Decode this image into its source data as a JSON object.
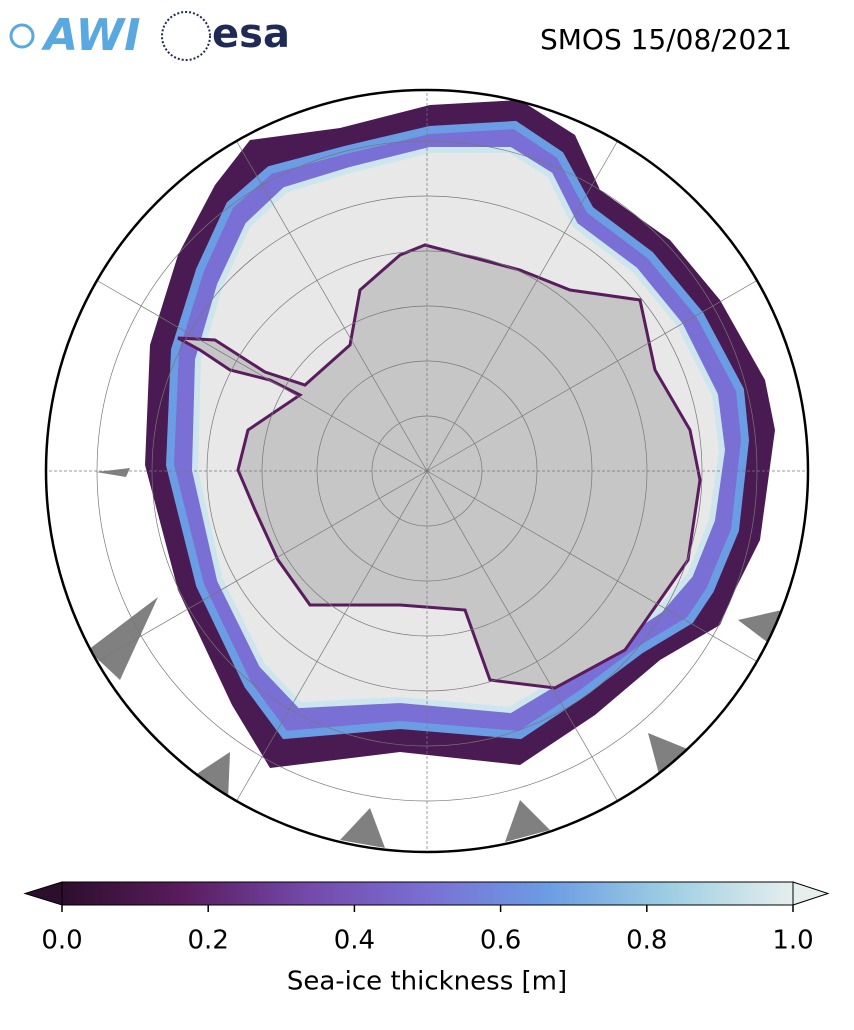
{
  "header": {
    "logos": [
      "AWI",
      "esa"
    ],
    "title": "SMOS 15/08/2021"
  },
  "colorbar": {
    "label": "Sea-ice thickness [m]",
    "lim": [
      0,
      1
    ],
    "ticks": [
      {
        "value": 0,
        "label": "0.0"
      },
      {
        "value": 0.2,
        "label": "0.2"
      },
      {
        "value": 0.4,
        "label": "0.4"
      },
      {
        "value": 0.6,
        "label": "0.6"
      },
      {
        "value": 0.8,
        "label": "0.8"
      },
      {
        "value": 1,
        "label": "1.0"
      }
    ],
    "colormap": [
      "#2c0f2c",
      "#5a1c5e",
      "#7349a8",
      "#7a6fd4",
      "#6b9de4",
      "#9fcfe2",
      "#e6eeee"
    ]
  }
}
